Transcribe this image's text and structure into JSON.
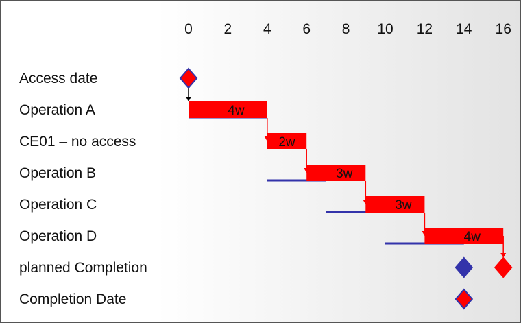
{
  "chart_data": {
    "type": "gantt",
    "title": "",
    "xlabel": "",
    "ylabel": "",
    "xlim": [
      0,
      16
    ],
    "x_ticks": [
      0,
      2,
      4,
      6,
      8,
      10,
      12,
      14,
      16
    ],
    "x_tick_labels": [
      "0",
      "2",
      "4",
      "6",
      "8",
      "10",
      "12",
      "14",
      "16"
    ],
    "grid": false,
    "legend": "none",
    "rows": [
      "Access date",
      "Operation A",
      "CE01 – no access",
      "Operation B",
      "Operation C",
      "Operation D",
      "planned Completion",
      "Completion Date"
    ],
    "actual_bars": [
      {
        "row": 1,
        "start": 0,
        "end": 4,
        "label": "4w"
      },
      {
        "row": 2,
        "start": 4,
        "end": 6,
        "label": "2w"
      },
      {
        "row": 3,
        "start": 6,
        "end": 9,
        "label": "3w"
      },
      {
        "row": 4,
        "start": 9,
        "end": 12,
        "label": "3w"
      },
      {
        "row": 5,
        "start": 12,
        "end": 16,
        "label": "4w"
      }
    ],
    "planned_lines": [
      {
        "row": 1,
        "start": 0,
        "end": 4
      },
      {
        "row": 3,
        "start": 4,
        "end": 7
      },
      {
        "row": 4,
        "start": 7,
        "end": 10
      },
      {
        "row": 5,
        "start": 10,
        "end": 14
      }
    ],
    "milestones": [
      {
        "row": 0,
        "x": 0,
        "fill": "#ff0000",
        "stroke": "#3333aa"
      },
      {
        "row": 6,
        "x": 14,
        "fill": "#3333aa",
        "stroke": "#3333aa"
      },
      {
        "row": 6,
        "x": 16,
        "fill": "#ff0000",
        "stroke": "#ff0000"
      },
      {
        "row": 7,
        "x": 14,
        "fill": "#ff0000",
        "stroke": "#3333aa"
      }
    ],
    "arrows": [
      {
        "kind": "start",
        "x": 0,
        "from_row": 0,
        "to_row": 1,
        "color": "#000000"
      },
      {
        "kind": "link",
        "x": 4,
        "from_row": 1,
        "to_row": 2,
        "color": "#ff0000"
      },
      {
        "kind": "link",
        "x": 6,
        "from_row": 2,
        "to_row": 3,
        "color": "#ff0000"
      },
      {
        "kind": "link",
        "x": 9,
        "from_row": 3,
        "to_row": 4,
        "color": "#ff0000"
      },
      {
        "kind": "link",
        "x": 12,
        "from_row": 4,
        "to_row": 5,
        "color": "#ff0000"
      },
      {
        "kind": "end",
        "x": 16,
        "from_row": 5,
        "to_row": 6,
        "color": "#ff0000"
      }
    ],
    "colors": {
      "actual_bar": "#ff0000",
      "planned_line": "#3333aa",
      "text": "#111111"
    }
  }
}
